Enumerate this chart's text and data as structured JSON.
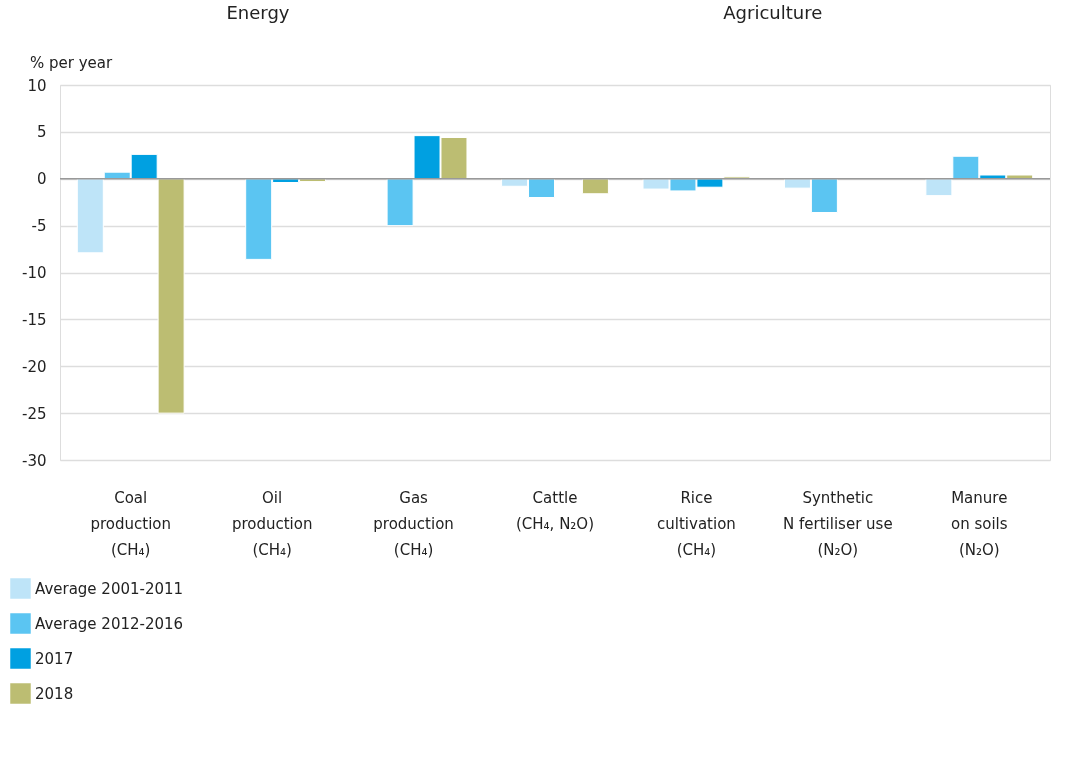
{
  "chart_data": {
    "type": "bar",
    "ylabel": "% per year",
    "annotations": [
      "Energy",
      "Agriculture"
    ],
    "categories": [
      "Coal\nproduction\n(CH₄)",
      "Oil\nproduction\n(CH₄)",
      "Gas\nproduction\n(CH₄)",
      "Cattle\n\n(CH₄, N₂O)",
      "Rice\ncultivation\n(CH₄)",
      "Synthetic\nN fertiliser use\n(N₂O)",
      "Manure\non soils\n(N₂O)"
    ],
    "series": [
      {
        "name": "Average 2001-2011",
        "color": "#bee4f8",
        "values": [
          -7.9,
          null,
          null,
          -0.8,
          -1.1,
          -1.0,
          -1.8
        ]
      },
      {
        "name": "Average 2012-2016",
        "color": "#5bc5f2",
        "values": [
          0.7,
          -8.6,
          -5.0,
          -2.0,
          -1.3,
          -3.6,
          2.4
        ]
      },
      {
        "name": "2017",
        "color": "#00a0e1",
        "values": [
          2.6,
          -0.4,
          4.6,
          null,
          -0.9,
          null,
          0.4
        ]
      },
      {
        "name": "2018",
        "color": "#bcbd72",
        "values": [
          -25.0,
          -0.3,
          4.4,
          -1.6,
          0.2,
          null,
          0.4
        ]
      }
    ],
    "ylim": [
      -30,
      10
    ],
    "yticks": [
      -30,
      -25,
      -20,
      -15,
      -10,
      -5,
      0,
      5,
      10
    ],
    "grid": "y",
    "legend": "bottom left"
  }
}
